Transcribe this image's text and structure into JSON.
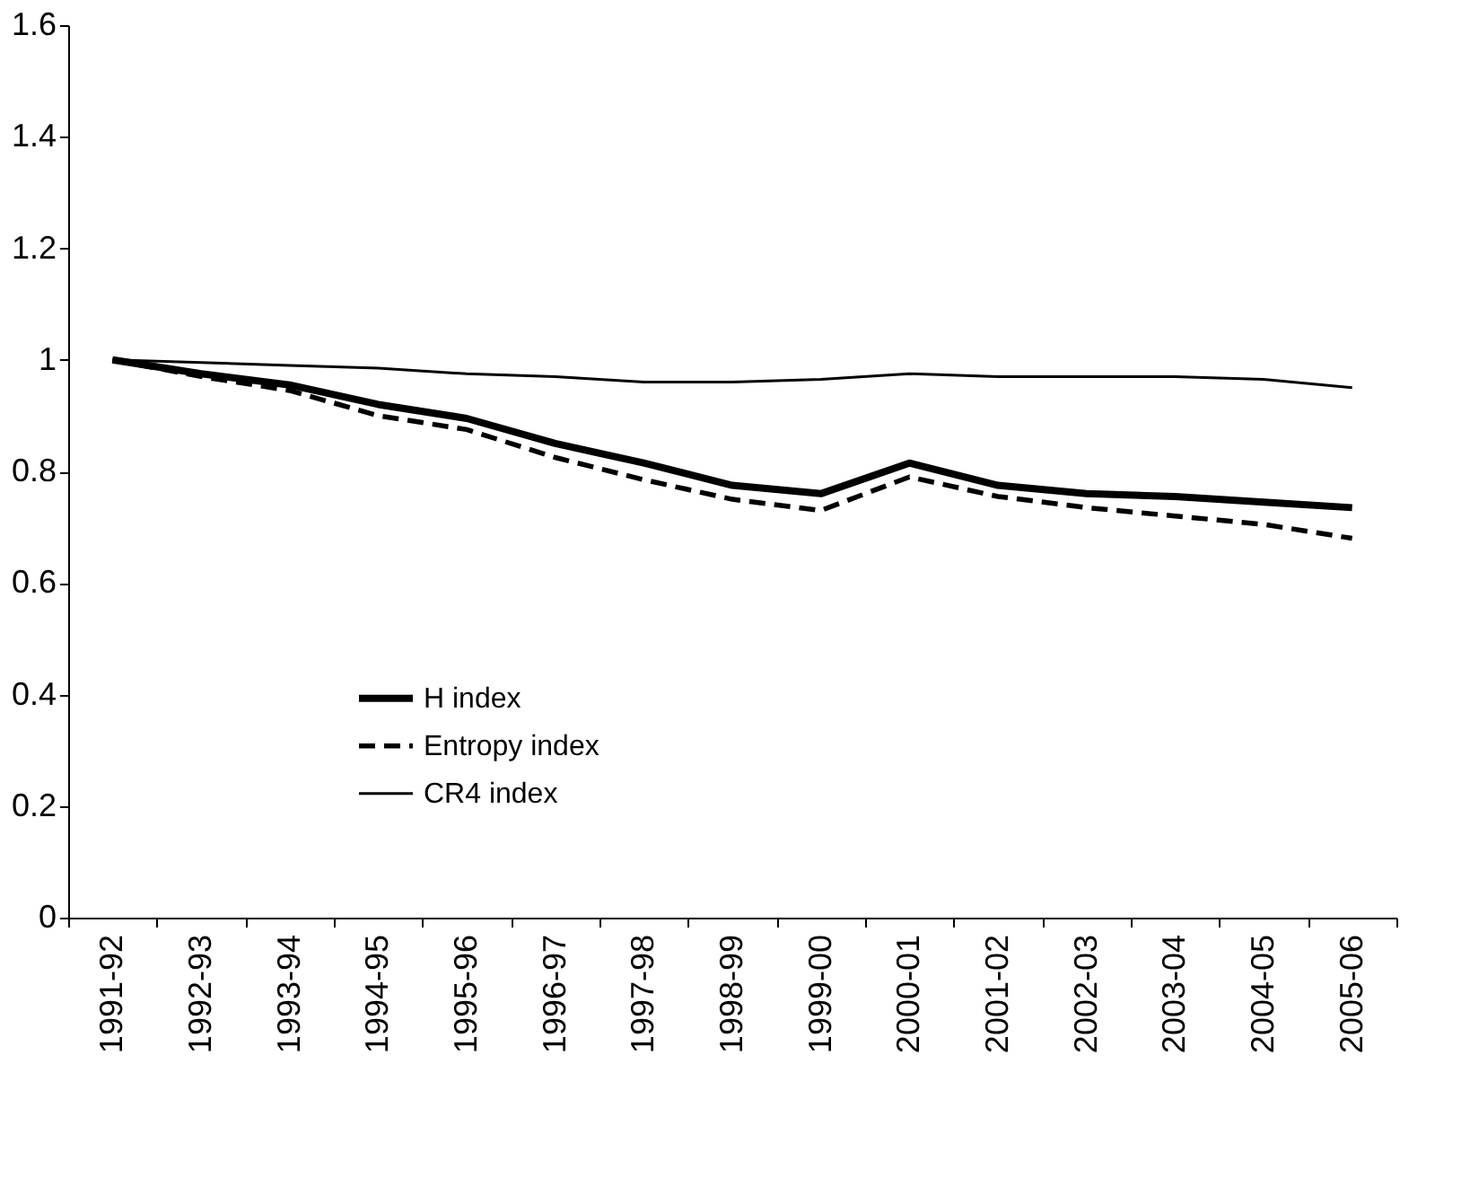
{
  "chart_data": {
    "type": "line",
    "categories": [
      "1991-92",
      "1992-93",
      "1993-94",
      "1994-95",
      "1995-96",
      "1996-97",
      "1997-98",
      "1998-99",
      "1999-00",
      "2000-01",
      "2001-02",
      "2002-03",
      "2003-04",
      "2004-05",
      "2005-06"
    ],
    "series": [
      {
        "name": "H index",
        "color": "#000000",
        "line_style": "solid",
        "values": [
          1,
          0.975,
          0.955,
          0.92,
          0.895,
          0.85,
          0.815,
          0.775,
          0.76,
          0.815,
          0.775,
          0.76,
          0.755,
          0.745,
          0.735
        ]
      },
      {
        "name": "Entropy index",
        "color": "#000000",
        "line_style": "dashed",
        "values": [
          1,
          0.97,
          0.945,
          0.9,
          0.875,
          0.825,
          0.785,
          0.75,
          0.73,
          0.79,
          0.755,
          0.735,
          0.72,
          0.705,
          0.68
        ]
      },
      {
        "name": "CR4 index",
        "color": "#000000",
        "line_style": "solid",
        "values": [
          1,
          0.995,
          0.99,
          0.985,
          0.975,
          0.97,
          0.96,
          0.96,
          0.965,
          0.975,
          0.97,
          0.97,
          0.97,
          0.965,
          0.95
        ]
      }
    ],
    "ylim": [
      0,
      1.6
    ],
    "yticks": [
      0,
      0.2,
      0.4,
      0.6,
      0.8,
      1,
      1.2,
      1.4,
      1.6
    ],
    "grid": false,
    "legend": "left",
    "marker": "none"
  }
}
